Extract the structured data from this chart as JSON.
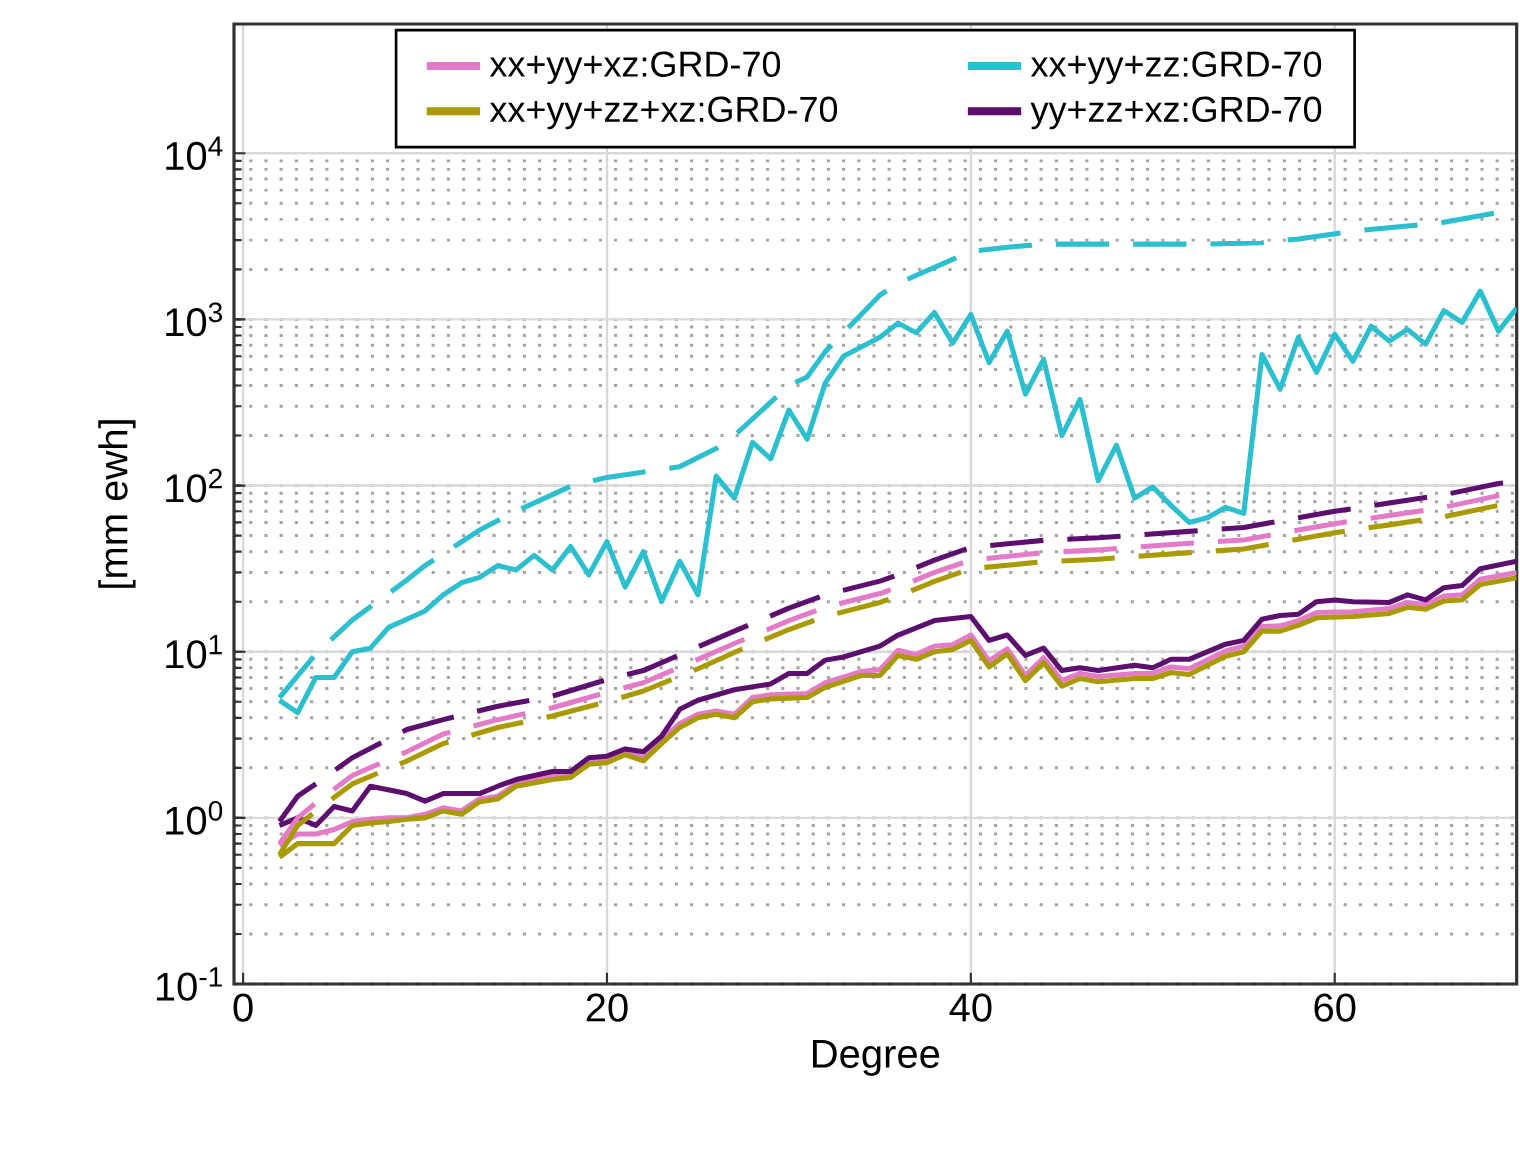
{
  "chart_data": {
    "type": "line",
    "xlabel": "Degree",
    "ylabel": "[mm ewh]",
    "xlim": [
      -0.5,
      70
    ],
    "ylim": [
      0.1,
      60000
    ],
    "log": "y",
    "xticks": [
      0,
      20,
      40,
      60
    ],
    "yticks": [
      {
        "value": 0.1,
        "label": "10$^{-1}$"
      },
      {
        "value": 1,
        "label": "10$^{0}$"
      },
      {
        "value": 10,
        "label": "10$^{1}$"
      },
      {
        "value": 100,
        "label": "10$^{2}$"
      },
      {
        "value": 1000,
        "label": "10$^{3}$"
      },
      {
        "value": 10000,
        "label": "10$^{4}$"
      }
    ],
    "grid": true,
    "legend": "top",
    "marker": "none",
    "series": [
      {
        "name": "xx+yy+xz:GRD-70",
        "color": "#e47bc9",
        "line_style": "solid",
        "x": [
          2,
          3,
          4,
          5,
          6,
          7,
          8,
          9,
          10,
          11,
          12,
          13,
          14,
          15,
          17,
          18,
          19,
          20,
          21,
          22,
          23,
          24,
          25,
          26,
          27,
          28,
          29,
          31,
          32,
          34,
          35,
          36,
          37,
          38,
          39,
          40,
          41,
          42,
          43,
          44,
          45,
          46,
          47,
          49,
          50,
          51,
          52,
          54,
          55,
          56,
          57,
          58,
          59,
          61,
          63,
          64,
          65,
          66,
          67,
          68,
          70
        ],
        "values": [
          0.68,
          0.8,
          0.8,
          0.85,
          0.95,
          0.98,
          1.0,
          1.0,
          1.05,
          1.15,
          1.1,
          1.3,
          1.35,
          1.6,
          1.8,
          1.85,
          2.2,
          2.25,
          2.5,
          2.3,
          2.95,
          3.7,
          4.2,
          4.4,
          4.2,
          5.3,
          5.5,
          5.6,
          6.5,
          7.6,
          7.8,
          10.2,
          9.6,
          10.8,
          11,
          12.6,
          8.8,
          10.4,
          7.2,
          9.2,
          6.7,
          7.4,
          7.1,
          7.4,
          7.4,
          8.1,
          7.9,
          10.1,
          10.8,
          14.2,
          14.3,
          15.4,
          17.2,
          17.4,
          18.2,
          19.8,
          19.2,
          21.6,
          22,
          27.3,
          30
        ]
      },
      {
        "name": "xx+yy+zz:GRD-70",
        "color": "#2bbfd0",
        "line_style": "solid",
        "x": [
          2,
          3,
          4,
          5,
          6,
          7,
          8,
          10,
          11,
          12,
          13,
          14,
          15,
          16,
          17,
          18,
          19,
          20,
          21,
          22,
          23,
          24,
          25,
          26,
          27,
          28,
          29,
          30,
          31,
          32,
          33,
          35,
          36,
          37,
          38,
          39,
          40,
          41,
          42,
          43,
          44,
          45,
          46,
          47,
          48,
          49,
          50,
          51,
          52,
          53,
          54,
          55,
          56,
          57,
          58,
          59,
          60,
          61,
          62,
          63,
          64,
          65,
          66,
          67,
          68,
          69,
          70
        ],
        "values": [
          5.1,
          4.3,
          7,
          7,
          10,
          10.5,
          14,
          17.6,
          22,
          26,
          28,
          33,
          31,
          38,
          31,
          43,
          29,
          46,
          24.5,
          40,
          20,
          35,
          22,
          114,
          84,
          182,
          145,
          285,
          190,
          415,
          600,
          780,
          950,
          830,
          1100,
          720,
          1070,
          550,
          850,
          355,
          575,
          200,
          330,
          107,
          175,
          84,
          98,
          76,
          60,
          64,
          74,
          68,
          615,
          380,
          780,
          480,
          815,
          560,
          910,
          740,
          870,
          710,
          1130,
          960,
          1480,
          850,
          1170
        ]
      },
      {
        "name": "xx+yy+zz+xz:GRD-70",
        "color": "#a99a00",
        "line_style": "solid",
        "x": [
          2,
          3,
          4,
          5,
          6,
          7,
          8,
          9,
          10,
          11,
          12,
          13,
          14,
          15,
          17,
          18,
          19,
          20,
          21,
          22,
          23,
          24,
          25,
          26,
          27,
          28,
          29,
          31,
          32,
          34,
          35,
          36,
          37,
          38,
          39,
          40,
          41,
          42,
          43,
          44,
          45,
          46,
          47,
          49,
          50,
          51,
          52,
          54,
          55,
          56,
          57,
          58,
          59,
          61,
          63,
          64,
          65,
          66,
          67,
          68,
          70
        ],
        "values": [
          0.58,
          0.7,
          0.7,
          0.7,
          0.9,
          0.93,
          0.95,
          0.98,
          1.0,
          1.1,
          1.05,
          1.25,
          1.3,
          1.55,
          1.7,
          1.75,
          2.1,
          2.15,
          2.4,
          2.2,
          2.8,
          3.5,
          4.0,
          4.2,
          4.0,
          5.0,
          5.2,
          5.3,
          6.1,
          7.2,
          7.2,
          9.5,
          9.0,
          10,
          10.3,
          11.7,
          8.1,
          9.7,
          6.7,
          8.6,
          6.2,
          6.9,
          6.6,
          6.9,
          6.9,
          7.5,
          7.3,
          9.4,
          10,
          13.3,
          13.3,
          14.4,
          16,
          16.3,
          17,
          18.5,
          18,
          20.2,
          20.5,
          25.4,
          27.9
        ]
      },
      {
        "name": "yy+zz+xz:GRD-70",
        "color": "#5c0f6e",
        "line_style": "solid",
        "x": [
          2,
          3,
          4,
          5,
          6,
          7,
          9,
          10,
          11,
          13,
          14,
          15,
          17,
          18,
          19,
          20,
          21,
          22,
          23,
          24,
          25,
          27,
          29,
          30,
          31,
          32,
          33,
          35,
          36,
          38,
          40,
          41,
          42,
          43,
          44,
          45,
          46,
          47,
          49,
          50,
          51,
          52,
          54,
          55,
          56,
          57,
          58,
          59,
          60,
          61,
          63,
          64,
          65,
          66,
          67,
          68,
          70
        ],
        "values": [
          0.9,
          1.0,
          0.9,
          1.17,
          1.1,
          1.55,
          1.4,
          1.26,
          1.4,
          1.4,
          1.55,
          1.7,
          1.9,
          1.9,
          2.3,
          2.35,
          2.6,
          2.5,
          3.1,
          4.5,
          5.1,
          5.9,
          6.4,
          7.4,
          7.4,
          8.9,
          9.3,
          10.8,
          12.6,
          15.4,
          16.3,
          11.7,
          12.6,
          9.5,
          10.5,
          7.7,
          8.0,
          7.7,
          8.3,
          8.0,
          9,
          9,
          11.1,
          11.7,
          15.7,
          16.5,
          16.8,
          20,
          20.5,
          20,
          19.8,
          22,
          20.5,
          24.3,
          25,
          31.6,
          35
        ]
      },
      {
        "color": "#e47bc9",
        "line_style": "dashed",
        "x": [
          2,
          3,
          4,
          6,
          9,
          11,
          14,
          17,
          20,
          22,
          25,
          27,
          30,
          32,
          35,
          36,
          38,
          40,
          44,
          47,
          52,
          55,
          58,
          60,
          63,
          66,
          69,
          70
        ],
        "values": [
          0.7,
          1.0,
          1.23,
          1.8,
          2.5,
          3.2,
          3.9,
          4.6,
          5.7,
          6.5,
          9.0,
          11.2,
          15.4,
          18.5,
          22.4,
          24.5,
          30,
          35.6,
          39.5,
          41,
          45,
          47,
          54,
          59,
          66,
          74,
          87,
          90
        ]
      },
      {
        "color": "#2bbfd0",
        "line_style": "dashed",
        "x": [
          2,
          4,
          6,
          9,
          10,
          13,
          15,
          18,
          20,
          24,
          26,
          27,
          30,
          31,
          32,
          35,
          36,
          39,
          40,
          42,
          44,
          53,
          56,
          58,
          61,
          64,
          66,
          69
        ],
        "values": [
          5.3,
          9.7,
          15.5,
          27,
          33,
          54,
          70,
          99,
          112,
          130,
          167,
          200,
          400,
          450,
          640,
          1400,
          1650,
          2300,
          2570,
          2720,
          2840,
          2840,
          2900,
          3050,
          3400,
          3650,
          3850,
          4400
        ]
      },
      {
        "color": "#a99a00",
        "line_style": "dashed",
        "x": [
          2,
          3,
          4,
          6,
          9,
          11,
          14,
          17,
          20,
          22,
          25,
          27,
          30,
          32,
          35,
          36,
          38,
          40,
          44,
          47,
          52,
          55,
          58,
          60,
          63,
          66,
          69,
          70
        ],
        "values": [
          0.6,
          0.9,
          1.1,
          1.6,
          2.2,
          2.8,
          3.5,
          4.1,
          5.0,
          5.8,
          7.9,
          9.9,
          13.6,
          16.3,
          19.8,
          21.6,
          26.5,
          31.6,
          34.8,
          36,
          39.5,
          41.5,
          47.5,
          52,
          58,
          65,
          76,
          79
        ]
      },
      {
        "color": "#5c0f6e",
        "line_style": "dashed",
        "x": [
          2,
          3,
          4,
          6,
          9,
          11,
          14,
          17,
          20,
          22,
          25,
          27,
          30,
          32,
          35,
          36,
          38,
          40,
          44,
          47,
          52,
          55,
          58,
          60,
          63,
          66,
          69,
          70
        ],
        "values": [
          0.95,
          1.35,
          1.6,
          2.3,
          3.4,
          3.9,
          4.7,
          5.4,
          6.8,
          7.7,
          10.7,
          13.3,
          18.3,
          22,
          26.6,
          29,
          35.6,
          42.5,
          46.8,
          48.5,
          53,
          56,
          64,
          70,
          78.5,
          88,
          103,
          106
        ]
      }
    ]
  }
}
